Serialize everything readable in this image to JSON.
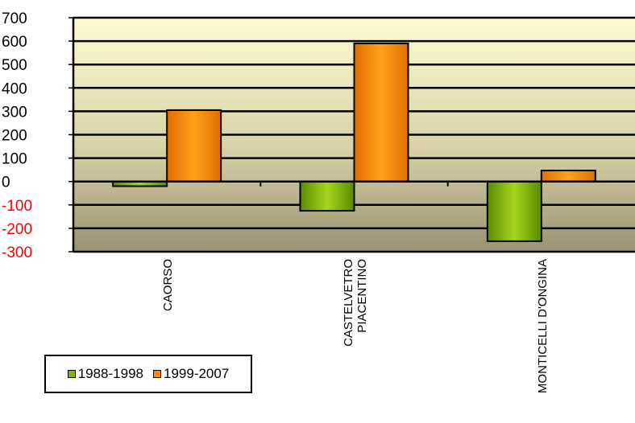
{
  "chart_data": {
    "type": "bar",
    "categories": [
      "CAORSO",
      "CASTELVETRO PIACENTINO",
      "MONTICELLI D'ONGINA"
    ],
    "category_lines": [
      [
        "CAORSO"
      ],
      [
        "CASTELVETRO",
        "PIACENTINO"
      ],
      [
        "MONTICELLI D'ONGINA"
      ]
    ],
    "series": [
      {
        "name": "1988-1998",
        "color": "#7cb800",
        "values": [
          -20,
          -125,
          -255
        ]
      },
      {
        "name": "1999-2007",
        "color": "#ff8c00",
        "values": [
          305,
          590,
          47
        ]
      }
    ],
    "ylim": [
      -300,
      700
    ],
    "yticks": [
      700,
      600,
      500,
      400,
      300,
      200,
      100,
      0,
      -100,
      -200,
      -300
    ],
    "negative_tick_color": "#ff0000",
    "grid": true,
    "legend_position": "bottom-left"
  }
}
